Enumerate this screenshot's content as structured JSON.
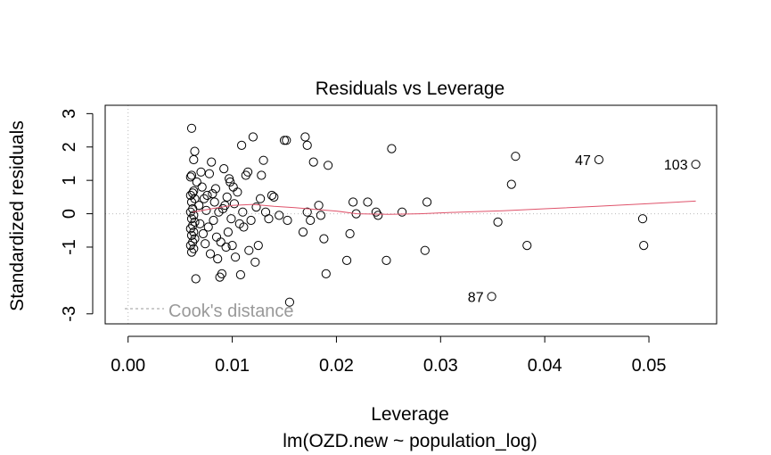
{
  "chart_data": {
    "type": "scatter",
    "title": "Residuals vs Leverage",
    "xlabel": "Leverage",
    "subtitle": "lm(OZD.new ~ population_log)",
    "ylabel": "Standardized residuals",
    "xlim": [
      -0.0022,
      0.0565
    ],
    "ylim": [
      -3.3,
      3.25
    ],
    "x_ticks": [
      0.0,
      0.01,
      0.02,
      0.03,
      0.04,
      0.05
    ],
    "x_tick_labels": [
      "0.00",
      "0.01",
      "0.02",
      "0.03",
      "0.04",
      "0.05"
    ],
    "y_ticks": [
      -3,
      -1,
      0,
      1,
      2,
      3
    ],
    "y_tick_labels": [
      "-3",
      "-1",
      "0",
      "1",
      "2",
      "3"
    ],
    "reference_lines": {
      "vertical": 0,
      "horizontal": 0,
      "style": "dotted"
    },
    "legend": {
      "label": "Cook's distance",
      "position": "bottom-left",
      "line_style": "dashed"
    },
    "colors": {
      "points": "#000000",
      "smooth": "#DF536B",
      "cook": "#999999",
      "ref": "#bbbbbb"
    },
    "smooth_line": {
      "x": [
        0.0062,
        0.008,
        0.01,
        0.012,
        0.014,
        0.016,
        0.018,
        0.02,
        0.022,
        0.025,
        0.028,
        0.032,
        0.036,
        0.04,
        0.045,
        0.05,
        0.0545
      ],
      "y": [
        0.05,
        0.15,
        0.25,
        0.28,
        0.22,
        0.18,
        0.13,
        0.08,
        0.0,
        -0.02,
        0.0,
        0.05,
        0.09,
        0.15,
        0.22,
        0.3,
        0.38
      ]
    },
    "labeled_points": [
      {
        "label": "47",
        "x": 0.0452,
        "y": 1.62
      },
      {
        "label": "103",
        "x": 0.0545,
        "y": 1.48
      },
      {
        "label": "87",
        "x": 0.0349,
        "y": -2.48
      }
    ],
    "points": [
      [
        0.0061,
        2.56
      ],
      [
        0.0064,
        1.87
      ],
      [
        0.0061,
        1.15
      ],
      [
        0.0063,
        1.62
      ],
      [
        0.006,
        1.1
      ],
      [
        0.0062,
        0.62
      ],
      [
        0.006,
        0.55
      ],
      [
        0.0063,
        0.68
      ],
      [
        0.0061,
        0.35
      ],
      [
        0.0064,
        0.45
      ],
      [
        0.0062,
        0.15
      ],
      [
        0.006,
        0.05
      ],
      [
        0.0063,
        -0.05
      ],
      [
        0.0061,
        -0.15
      ],
      [
        0.0064,
        -0.25
      ],
      [
        0.0062,
        -0.35
      ],
      [
        0.006,
        -0.45
      ],
      [
        0.0063,
        -0.55
      ],
      [
        0.0061,
        -0.65
      ],
      [
        0.0064,
        -0.75
      ],
      [
        0.0062,
        -0.85
      ],
      [
        0.006,
        -0.95
      ],
      [
        0.0063,
        -1.05
      ],
      [
        0.0061,
        -1.15
      ],
      [
        0.0065,
        -1.95
      ],
      [
        0.0066,
        0.95
      ],
      [
        0.0068,
        0.25
      ],
      [
        0.0069,
        -0.3
      ],
      [
        0.007,
        1.25
      ],
      [
        0.0071,
        0.8
      ],
      [
        0.0072,
        -0.6
      ],
      [
        0.0073,
        0.45
      ],
      [
        0.0074,
        -0.9
      ],
      [
        0.0075,
        0.1
      ],
      [
        0.0076,
        0.55
      ],
      [
        0.0077,
        -0.4
      ],
      [
        0.0078,
        1.2
      ],
      [
        0.0079,
        -1.2
      ],
      [
        0.008,
        1.55
      ],
      [
        0.0081,
        0.6
      ],
      [
        0.0082,
        -0.2
      ],
      [
        0.0083,
        0.35
      ],
      [
        0.0084,
        0.75
      ],
      [
        0.0085,
        -0.7
      ],
      [
        0.0086,
        -1.35
      ],
      [
        0.0087,
        0.05
      ],
      [
        0.0088,
        -1.9
      ],
      [
        0.0089,
        -0.85
      ],
      [
        0.009,
        -1.8
      ],
      [
        0.0091,
        0.15
      ],
      [
        0.0092,
        1.35
      ],
      [
        0.0093,
        0.25
      ],
      [
        0.0094,
        -1.0
      ],
      [
        0.0095,
        0.5
      ],
      [
        0.0096,
        -0.55
      ],
      [
        0.0097,
        1.05
      ],
      [
        0.0098,
        0.95
      ],
      [
        0.0099,
        -0.15
      ],
      [
        0.01,
        -0.95
      ],
      [
        0.0101,
        0.8
      ],
      [
        0.0102,
        0.3
      ],
      [
        0.0103,
        -1.3
      ],
      [
        0.0105,
        0.65
      ],
      [
        0.0107,
        -0.3
      ],
      [
        0.0108,
        -1.83
      ],
      [
        0.0109,
        2.05
      ],
      [
        0.011,
        0.05
      ],
      [
        0.0111,
        -0.4
      ],
      [
        0.0113,
        1.15
      ],
      [
        0.0115,
        1.25
      ],
      [
        0.0116,
        -1.1
      ],
      [
        0.0118,
        -0.2
      ],
      [
        0.012,
        2.3
      ],
      [
        0.0122,
        -1.45
      ],
      [
        0.0123,
        0.2
      ],
      [
        0.0125,
        -0.95
      ],
      [
        0.0127,
        0.45
      ],
      [
        0.0128,
        1.15
      ],
      [
        0.013,
        1.6
      ],
      [
        0.0132,
        0.05
      ],
      [
        0.0135,
        -0.15
      ],
      [
        0.0138,
        0.55
      ],
      [
        0.014,
        0.5
      ],
      [
        0.0145,
        -0.05
      ],
      [
        0.015,
        2.2
      ],
      [
        0.0152,
        2.2
      ],
      [
        0.0153,
        -0.2
      ],
      [
        0.0155,
        -2.65
      ],
      [
        0.0168,
        -0.55
      ],
      [
        0.017,
        2.3
      ],
      [
        0.0172,
        0.05
      ],
      [
        0.0172,
        2.05
      ],
      [
        0.0175,
        -0.2
      ],
      [
        0.0178,
        1.55
      ],
      [
        0.0183,
        0.25
      ],
      [
        0.0185,
        -0.05
      ],
      [
        0.0188,
        -0.75
      ],
      [
        0.019,
        -1.8
      ],
      [
        0.0192,
        1.45
      ],
      [
        0.021,
        -1.4
      ],
      [
        0.0213,
        -0.6
      ],
      [
        0.0216,
        0.35
      ],
      [
        0.0219,
        0.0
      ],
      [
        0.023,
        0.35
      ],
      [
        0.0238,
        0.05
      ],
      [
        0.024,
        -0.05
      ],
      [
        0.0248,
        -1.4
      ],
      [
        0.0253,
        1.95
      ],
      [
        0.0263,
        0.05
      ],
      [
        0.0285,
        -1.1
      ],
      [
        0.0287,
        0.35
      ],
      [
        0.0349,
        -2.48
      ],
      [
        0.0355,
        -0.25
      ],
      [
        0.0368,
        0.88
      ],
      [
        0.0372,
        1.72
      ],
      [
        0.0383,
        -0.95
      ],
      [
        0.0452,
        1.62
      ],
      [
        0.0494,
        -0.15
      ],
      [
        0.0495,
        -0.95
      ],
      [
        0.0545,
        1.48
      ]
    ]
  }
}
